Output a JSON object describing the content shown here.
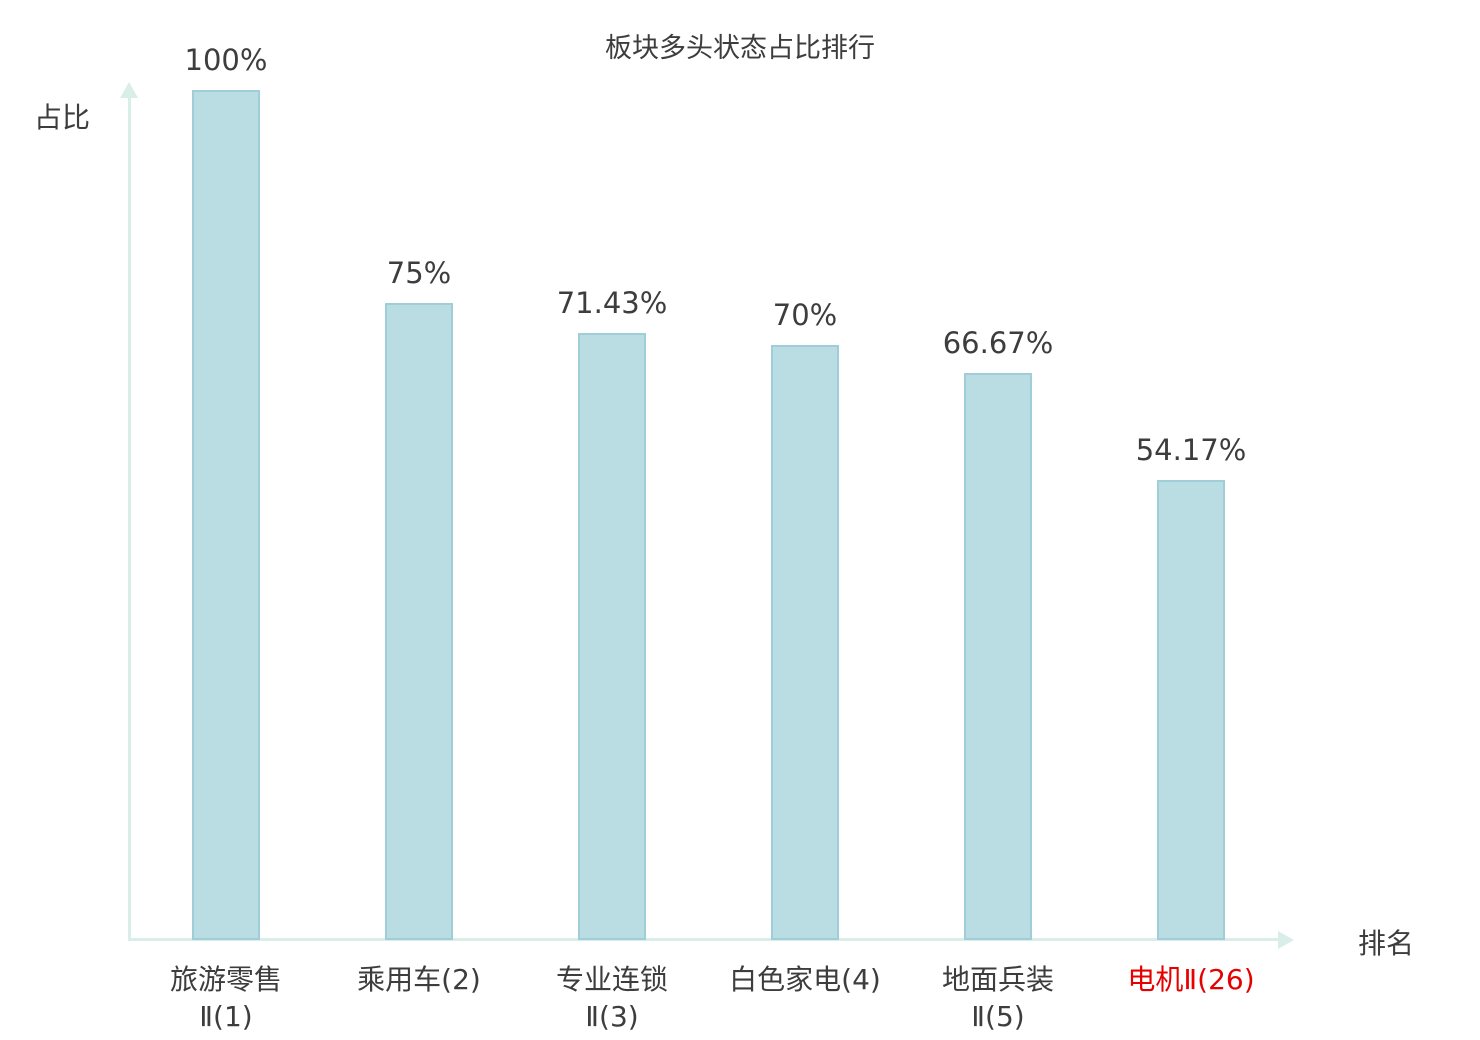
{
  "chart_data": {
    "type": "bar",
    "title": "板块多头状态占比排行",
    "xlabel": "排名",
    "ylabel": "占比",
    "ylim": [
      0,
      100
    ],
    "grid": false,
    "legend": "none",
    "categories": [
      "旅游零售Ⅱ(1)",
      "乘用车(2)",
      "专业连锁Ⅱ(3)",
      "白色家电(4)",
      "地面兵装Ⅱ(5)",
      "电机Ⅱ(26)"
    ],
    "category_lines": [
      [
        "旅游零售",
        "Ⅱ(1)"
      ],
      [
        "乘用车(2)"
      ],
      [
        "专业连锁",
        "Ⅱ(3)"
      ],
      [
        "白色家电(4)"
      ],
      [
        "地面兵装",
        "Ⅱ(5)"
      ],
      [
        "电机Ⅱ(26)"
      ]
    ],
    "values": [
      100,
      75,
      71.43,
      70,
      66.67,
      54.17
    ],
    "value_labels": [
      "100%",
      "75%",
      "71.43%",
      "70%",
      "66.67%",
      "54.17%"
    ],
    "highlight_index": 5,
    "colors": {
      "bar_fill": "#b9dde2",
      "bar_border": "#9fced8",
      "axis": "#d9eee8",
      "text": "#3d3d3d",
      "highlight_text": "#e60000"
    }
  }
}
